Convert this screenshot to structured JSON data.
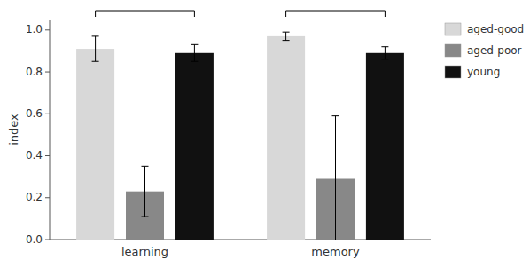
{
  "chart_data": {
    "type": "bar",
    "categories": [
      "learning",
      "memory"
    ],
    "series": [
      {
        "name": "aged-good",
        "color": "#d8d8d8",
        "values": [
          0.91,
          0.97
        ],
        "errors": [
          0.06,
          0.02
        ]
      },
      {
        "name": "aged-poor",
        "color": "#888888",
        "values": [
          0.23,
          0.29
        ],
        "errors": [
          0.12,
          0.3
        ]
      },
      {
        "name": "young",
        "color": "#111111",
        "values": [
          0.89,
          0.89
        ],
        "errors": [
          0.04,
          0.03
        ]
      }
    ],
    "ylabel": "index",
    "ylim": [
      0.0,
      1.05
    ],
    "yticks": [
      {
        "value": 0.0,
        "label": "0.0"
      },
      0.2,
      0.4,
      0.6,
      0.8,
      {
        "value": 1.0,
        "label": "1.0"
      }
    ],
    "legend": "right"
  }
}
